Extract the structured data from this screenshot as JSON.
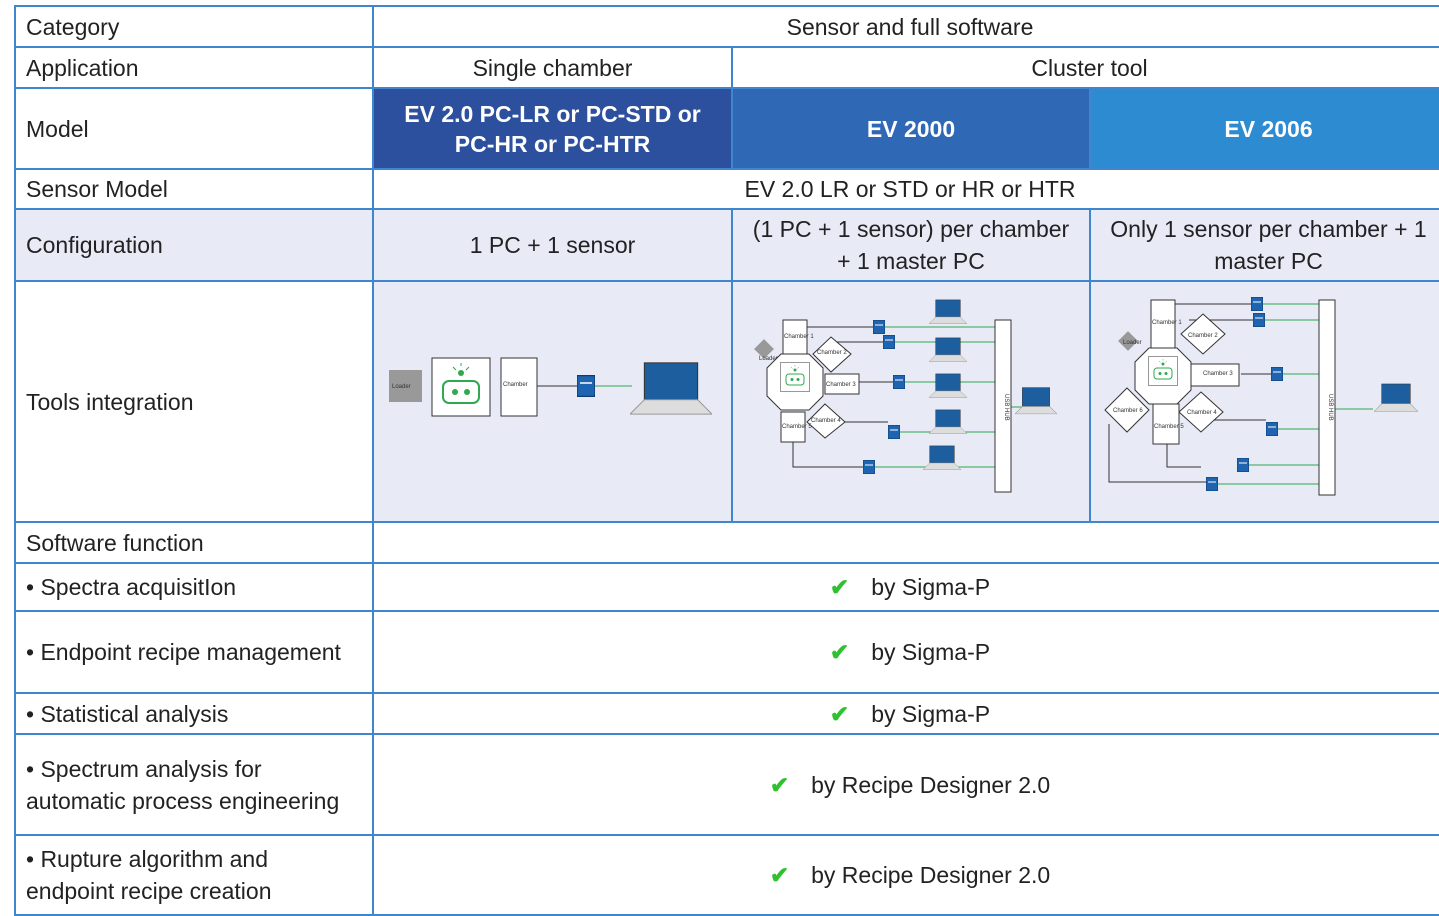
{
  "table": {
    "rows": [
      [
        "Category",
        "Sensor and full software"
      ],
      [
        "Application",
        "Single chamber",
        "Cluster tool"
      ],
      [
        "Model",
        "EV 2.0 PC-LR or PC-STD or PC-HR or PC-HTR",
        "EV 2000",
        "EV 2006"
      ],
      [
        "Sensor Model",
        "EV 2.0 LR or STD or HR or HTR"
      ],
      [
        "Configuration",
        "1 PC + 1 sensor",
        "(1 PC + 1 sensor) per chamber + 1 master PC",
        "Only 1 sensor per chamber + 1 master PC"
      ],
      [
        "Tools integration"
      ],
      [
        "Software function"
      ],
      [
        "• Spectra acquisitIon",
        "by Sigma-P"
      ],
      [
        "• Endpoint recipe management",
        "by Sigma-P"
      ],
      [
        "• Statistical analysis",
        "by Sigma-P"
      ],
      [
        "• Spectrum analysis for automatic process engineering",
        "by Recipe Designer 2.0"
      ],
      [
        "• Rupture algorithm and endpoint recipe creation",
        "by Recipe Designer 2.0"
      ]
    ]
  },
  "diagrams": {
    "single": {
      "labels": [
        "Loader",
        "Chamber"
      ]
    },
    "ev2000": {
      "labels": [
        "Loader",
        "Chamber 1",
        "Chamber 2",
        "Chamber 3",
        "Chamber 4",
        "Chamber 5",
        "USB HUB"
      ]
    },
    "ev2006": {
      "labels": [
        "Loader",
        "Chamber 1",
        "Chamber 2",
        "Chamber 3",
        "Chamber 4",
        "Chamber 5",
        "Chamber 6",
        "USB HUB"
      ]
    }
  }
}
